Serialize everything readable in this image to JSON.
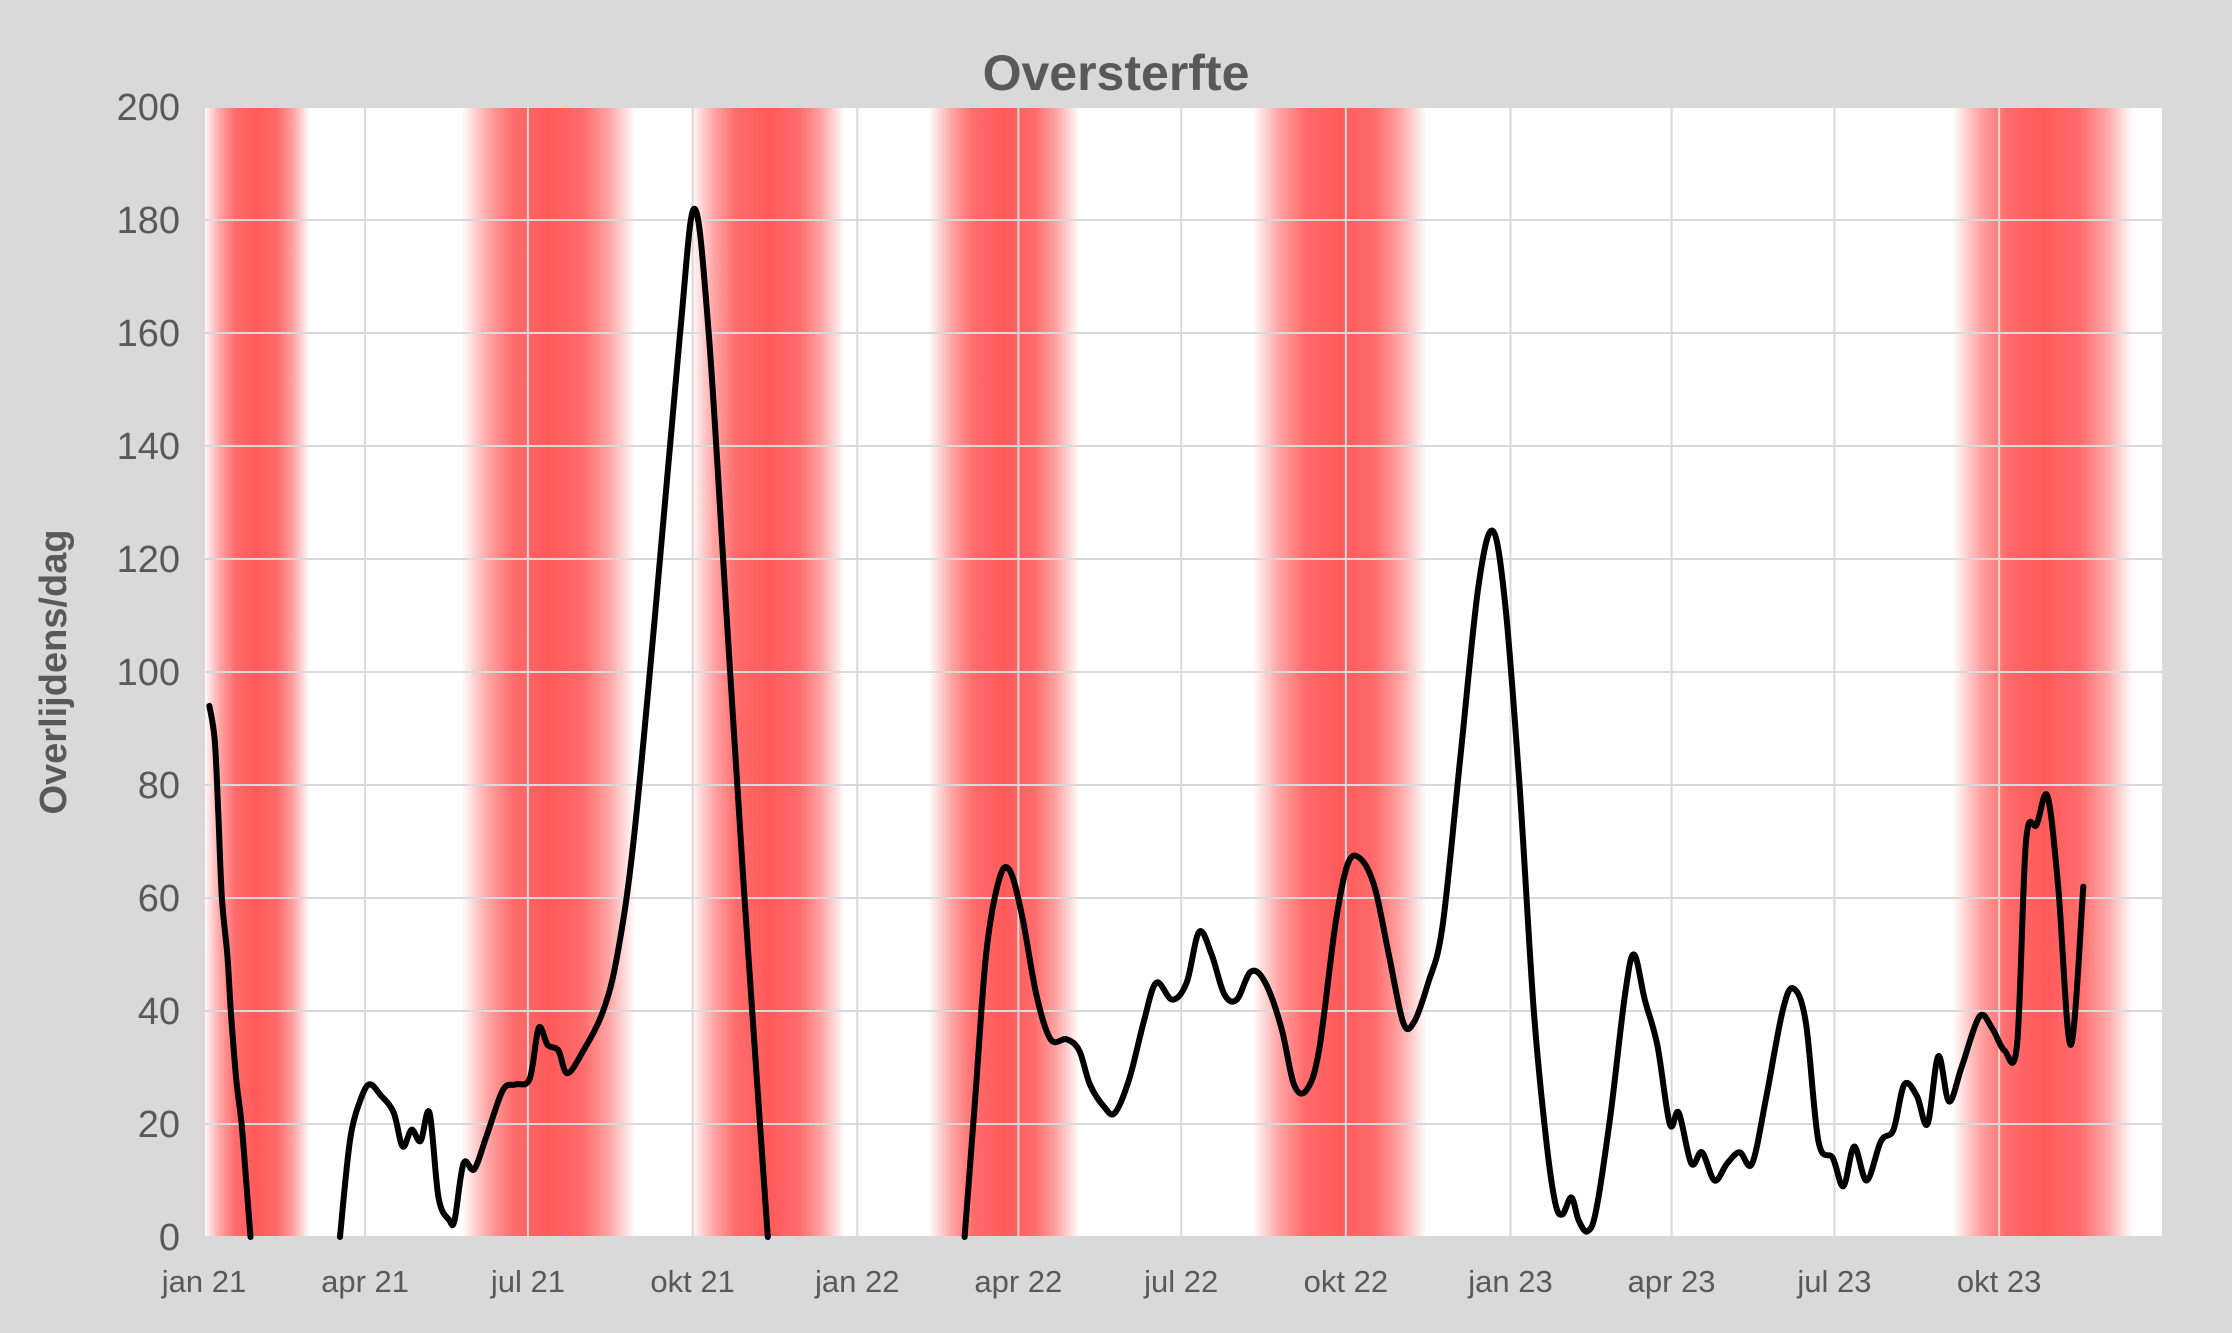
{
  "chart_data": {
    "type": "line",
    "title": "Oversterfte",
    "xlabel": "",
    "ylabel": "Overlijdens/dag",
    "ylim": [
      0,
      200
    ],
    "yticks": [
      0,
      20,
      40,
      60,
      80,
      100,
      120,
      140,
      160,
      180,
      200
    ],
    "xlim": [
      "2021-01-01",
      "2023-12-31"
    ],
    "xticks": [
      {
        "date": "2021-01-01",
        "label": "jan 21"
      },
      {
        "date": "2021-04-01",
        "label": "apr 21"
      },
      {
        "date": "2021-07-01",
        "label": "jul 21"
      },
      {
        "date": "2021-10-01",
        "label": "okt 21"
      },
      {
        "date": "2022-01-01",
        "label": "jan 22"
      },
      {
        "date": "2022-04-01",
        "label": "apr 22"
      },
      {
        "date": "2022-07-01",
        "label": "jul 22"
      },
      {
        "date": "2022-10-01",
        "label": "okt 22"
      },
      {
        "date": "2023-01-01",
        "label": "jan 23"
      },
      {
        "date": "2023-04-01",
        "label": "apr 23"
      },
      {
        "date": "2023-07-01",
        "label": "jul 23"
      },
      {
        "date": "2023-10-01",
        "label": "okt 23"
      }
    ],
    "grid": true,
    "legend": "none",
    "line_color": "#000000",
    "highlight_color": "#ff5a5a",
    "highlight_periods": [
      [
        "2020-12-22",
        "2021-03-01"
      ],
      [
        "2021-05-25",
        "2021-08-30"
      ],
      [
        "2021-09-30",
        "2021-12-25"
      ],
      [
        "2022-02-10",
        "2022-05-05"
      ],
      [
        "2022-08-10",
        "2022-11-15"
      ],
      [
        "2023-09-05",
        "2023-12-15"
      ]
    ],
    "series": [
      {
        "segments": [
          [
            [
              "2021-01-04",
              94
            ],
            [
              "2021-01-07",
              88
            ],
            [
              "2021-01-09",
              75
            ],
            [
              "2021-01-11",
              60
            ],
            [
              "2021-01-14",
              50
            ],
            [
              "2021-01-16",
              40
            ],
            [
              "2021-01-19",
              28
            ],
            [
              "2021-01-22",
              20
            ],
            [
              "2021-01-25",
              8
            ],
            [
              "2021-01-27",
              0
            ]
          ],
          [
            [
              "2021-03-18",
              0
            ],
            [
              "2021-03-21",
              10
            ],
            [
              "2021-03-24",
              18
            ],
            [
              "2021-03-28",
              23
            ],
            [
              "2021-04-03",
              27
            ],
            [
              "2021-04-10",
              25
            ],
            [
              "2021-04-17",
              22
            ],
            [
              "2021-04-22",
              16
            ],
            [
              "2021-04-27",
              19
            ],
            [
              "2021-05-02",
              17
            ],
            [
              "2021-05-07",
              22
            ],
            [
              "2021-05-12",
              7
            ],
            [
              "2021-05-18",
              3
            ],
            [
              "2021-05-21",
              3
            ],
            [
              "2021-05-26",
              13
            ],
            [
              "2021-06-01",
              12
            ],
            [
              "2021-06-08",
              18
            ],
            [
              "2021-06-17",
              26
            ],
            [
              "2021-06-24",
              27
            ],
            [
              "2021-07-02",
              28
            ],
            [
              "2021-07-07",
              37
            ],
            [
              "2021-07-12",
              34
            ],
            [
              "2021-07-18",
              33
            ],
            [
              "2021-07-23",
              29
            ],
            [
              "2021-08-01",
              33
            ],
            [
              "2021-08-12",
              40
            ],
            [
              "2021-08-20",
              50
            ],
            [
              "2021-08-29",
              70
            ],
            [
              "2021-09-10",
              110
            ],
            [
              "2021-09-24",
              160
            ],
            [
              "2021-10-02",
              182
            ],
            [
              "2021-10-10",
              160
            ],
            [
              "2021-10-20",
              110
            ],
            [
              "2021-10-30",
              60
            ],
            [
              "2021-11-12",
              0
            ]
          ],
          [
            [
              "2022-03-02",
              0
            ],
            [
              "2022-03-08",
              25
            ],
            [
              "2022-03-14",
              50
            ],
            [
              "2022-03-21",
              63
            ],
            [
              "2022-03-27",
              65
            ],
            [
              "2022-04-03",
              57
            ],
            [
              "2022-04-11",
              43
            ],
            [
              "2022-04-19",
              35
            ],
            [
              "2022-04-28",
              35
            ],
            [
              "2022-05-05",
              33
            ],
            [
              "2022-05-11",
              27
            ],
            [
              "2022-05-19",
              23
            ],
            [
              "2022-05-25",
              22
            ],
            [
              "2022-06-02",
              28
            ],
            [
              "2022-06-10",
              38
            ],
            [
              "2022-06-17",
              45
            ],
            [
              "2022-06-26",
              42
            ],
            [
              "2022-07-04",
              45
            ],
            [
              "2022-07-11",
              54
            ],
            [
              "2022-07-18",
              50
            ],
            [
              "2022-07-25",
              43
            ],
            [
              "2022-08-01",
              42
            ],
            [
              "2022-08-09",
              47
            ],
            [
              "2022-08-17",
              45
            ],
            [
              "2022-08-26",
              37
            ],
            [
              "2022-09-02",
              27
            ],
            [
              "2022-09-09",
              26
            ],
            [
              "2022-09-16",
              33
            ],
            [
              "2022-09-25",
              55
            ],
            [
              "2022-10-02",
              66
            ],
            [
              "2022-10-09",
              67
            ],
            [
              "2022-10-17",
              62
            ],
            [
              "2022-10-25",
              50
            ],
            [
              "2022-11-02",
              38
            ],
            [
              "2022-11-08",
              38
            ],
            [
              "2022-11-16",
              45
            ],
            [
              "2022-11-24",
              55
            ],
            [
              "2022-12-04",
              85
            ],
            [
              "2022-12-14",
              115
            ],
            [
              "2022-12-22",
              125
            ],
            [
              "2022-12-29",
              112
            ],
            [
              "2023-01-06",
              80
            ],
            [
              "2023-01-14",
              40
            ],
            [
              "2023-01-21",
              17
            ],
            [
              "2023-01-26",
              6
            ],
            [
              "2023-01-30",
              4
            ],
            [
              "2023-02-04",
              7
            ],
            [
              "2023-02-08",
              3
            ],
            [
              "2023-02-13",
              1
            ],
            [
              "2023-02-18",
              5
            ],
            [
              "2023-02-26",
              22
            ],
            [
              "2023-03-06",
              43
            ],
            [
              "2023-03-11",
              50
            ],
            [
              "2023-03-17",
              42
            ],
            [
              "2023-03-24",
              34
            ],
            [
              "2023-03-31",
              20
            ],
            [
              "2023-04-05",
              22
            ],
            [
              "2023-04-12",
              13
            ],
            [
              "2023-04-18",
              15
            ],
            [
              "2023-04-25",
              10
            ],
            [
              "2023-05-02",
              13
            ],
            [
              "2023-05-09",
              15
            ],
            [
              "2023-05-16",
              13
            ],
            [
              "2023-05-24",
              25
            ],
            [
              "2023-06-02",
              40
            ],
            [
              "2023-06-08",
              44
            ],
            [
              "2023-06-15",
              38
            ],
            [
              "2023-06-22",
              17
            ],
            [
              "2023-06-30",
              14
            ],
            [
              "2023-07-06",
              9
            ],
            [
              "2023-07-12",
              16
            ],
            [
              "2023-07-19",
              10
            ],
            [
              "2023-07-27",
              17
            ],
            [
              "2023-08-03",
              19
            ],
            [
              "2023-08-09",
              27
            ],
            [
              "2023-08-16",
              25
            ],
            [
              "2023-08-22",
              20
            ],
            [
              "2023-08-28",
              32
            ],
            [
              "2023-09-03",
              24
            ],
            [
              "2023-09-10",
              30
            ],
            [
              "2023-09-20",
              39
            ],
            [
              "2023-09-27",
              37
            ],
            [
              "2023-10-04",
              33
            ],
            [
              "2023-10-11",
              34
            ],
            [
              "2023-10-16",
              70
            ],
            [
              "2023-10-22",
              73
            ],
            [
              "2023-10-28",
              78
            ],
            [
              "2023-11-03",
              62
            ],
            [
              "2023-11-10",
              34
            ],
            [
              "2023-11-17",
              62
            ]
          ]
        ]
      }
    ]
  }
}
